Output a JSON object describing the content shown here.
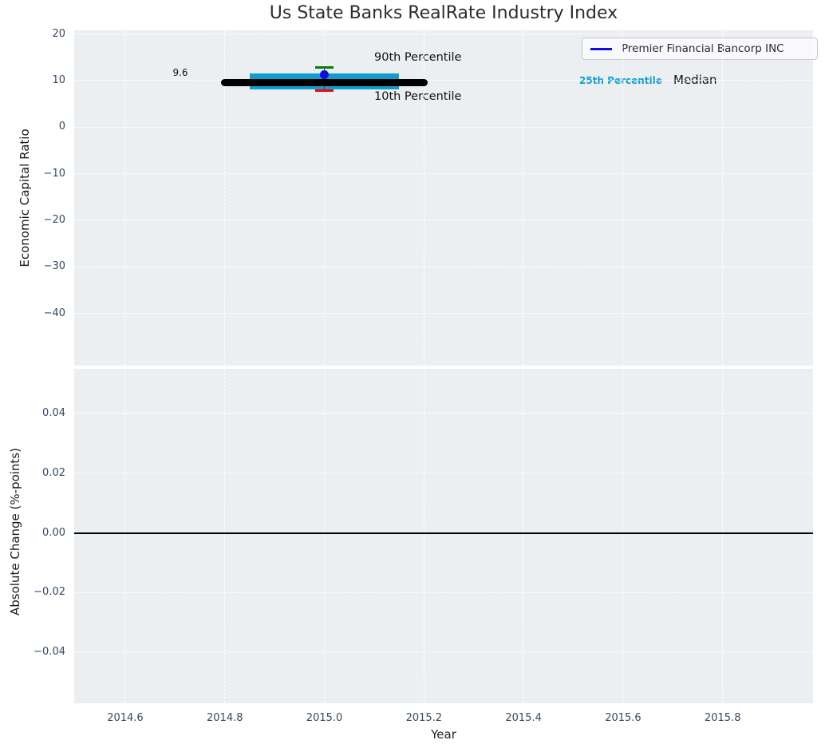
{
  "figure": {
    "title": "Us State Banks RealRate Industry Index"
  },
  "chart_data": [
    {
      "type": "scatter",
      "panel": "top",
      "title": "Us State Banks RealRate Industry Index",
      "ylabel": "Economic Capital Ratio",
      "xlim": [
        2014.4975,
        2015.9815
      ],
      "ylim": [
        -51.2,
        20.8
      ],
      "grid": true,
      "xticks": [
        2014.6,
        2014.8,
        2015.0,
        2015.2,
        2015.4,
        2015.6,
        2015.8
      ],
      "xtick_labels": [
        "2014.6",
        "2014.8",
        "2015.0",
        "2015.2",
        "2015.4",
        "2015.6",
        "2015.8"
      ],
      "yticks": [
        20,
        10,
        0,
        -10,
        -20,
        -30,
        -40
      ],
      "ytick_labels": [
        "20",
        "10",
        "0",
        "−10",
        "−20",
        "−30",
        "−40"
      ],
      "x": 2015.0,
      "median": 9.6,
      "median_label": "9.6",
      "median_span_years": [
        2014.8,
        2015.2
      ],
      "iqr_band": {
        "low": 8.1,
        "high": 11.5,
        "span_years": [
          2014.85,
          2015.15
        ]
      },
      "percentile_10": 7.8,
      "percentile_90": 12.9,
      "company_point": {
        "name": "Premier Financial Bancorp INC",
        "x": 2015.0,
        "y": 11.3
      },
      "annotations": {
        "p90": "90th Percentile",
        "p10": "10th Percentile",
        "p25": "25th Percentile",
        "median": "Median"
      },
      "legend": {
        "label": "Premier Financial Bancorp INC",
        "position": "upper right"
      },
      "colors": {
        "plot_background": "#eceff1",
        "grid": "#ffffff",
        "median_line": "#000000",
        "iqr_band": "#109ecf",
        "whisker": "#3f3f3f",
        "percentile_90_cap": "#008000",
        "percentile_10_cap": "#ff0000",
        "company_point": "#0f0fe0",
        "tick_label": "#36495e"
      }
    },
    {
      "type": "line",
      "panel": "bottom",
      "ylabel": "Absolute Change (%-points)",
      "xlabel": "Year",
      "xlim": [
        2014.4975,
        2015.9815
      ],
      "ylim": [
        -0.0571,
        0.055
      ],
      "grid": true,
      "xticks": [
        2014.6,
        2014.8,
        2015.0,
        2015.2,
        2015.4,
        2015.6,
        2015.8
      ],
      "xtick_labels": [
        "2014.6",
        "2014.8",
        "2015.0",
        "2015.2",
        "2015.4",
        "2015.6",
        "2015.8"
      ],
      "yticks": [
        0.04,
        0.02,
        0.0,
        -0.02,
        -0.04
      ],
      "ytick_labels": [
        "0.04",
        "0.02",
        "0.00",
        "−0.02",
        "−0.04"
      ],
      "zero_line_y": 0.0,
      "series": []
    }
  ]
}
